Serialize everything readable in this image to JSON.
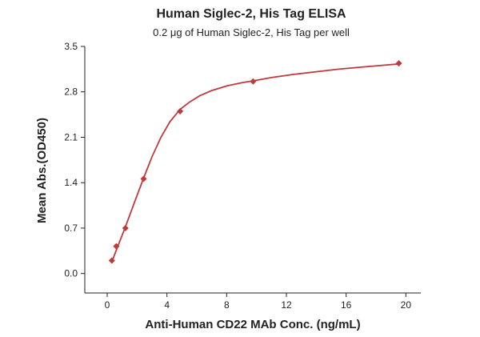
{
  "chart_data": {
    "type": "scatter",
    "title": "Human Siglec-2, His Tag ELISA",
    "subtitle": "0.2 μg of Human Siglec-2, His Tag per well",
    "xlabel": "Anti-Human CD22 MAb Conc. (ng/mL)",
    "ylabel": "Mean Abs.(OD450)",
    "xlim": [
      -1.5,
      21
    ],
    "ylim": [
      -0.3,
      3.5
    ],
    "xticks": [
      0,
      4,
      8,
      12,
      16,
      20
    ],
    "yticks": [
      0.0,
      0.7,
      1.4,
      2.1,
      2.8,
      3.5
    ],
    "xtick_labels": [
      "0",
      "4",
      "8",
      "12",
      "16",
      "20"
    ],
    "ytick_labels": [
      "0.0",
      "0.7",
      "1.4",
      "2.1",
      "2.8",
      "3.5"
    ],
    "grid": false,
    "series": [
      {
        "color": "#c0393b",
        "marker": "diamond",
        "x": [
          0.31,
          0.61,
          1.22,
          2.44,
          4.88,
          9.77,
          19.53
        ],
        "y": [
          0.2,
          0.42,
          0.7,
          1.46,
          2.5,
          2.96,
          3.24
        ],
        "fit_curve": {
          "x": [
            0.31,
            0.61,
            1.22,
            1.8,
            2.44,
            3.0,
            3.6,
            4.2,
            4.88,
            5.5,
            6.2,
            7.0,
            8.0,
            9.0,
            9.77,
            11.0,
            12.5,
            14.0,
            15.5,
            17.0,
            18.5,
            19.53
          ],
          "y": [
            0.18,
            0.36,
            0.72,
            1.08,
            1.47,
            1.8,
            2.1,
            2.34,
            2.53,
            2.64,
            2.74,
            2.82,
            2.89,
            2.94,
            2.97,
            3.02,
            3.07,
            3.11,
            3.15,
            3.18,
            3.21,
            3.23
          ]
        }
      }
    ]
  }
}
